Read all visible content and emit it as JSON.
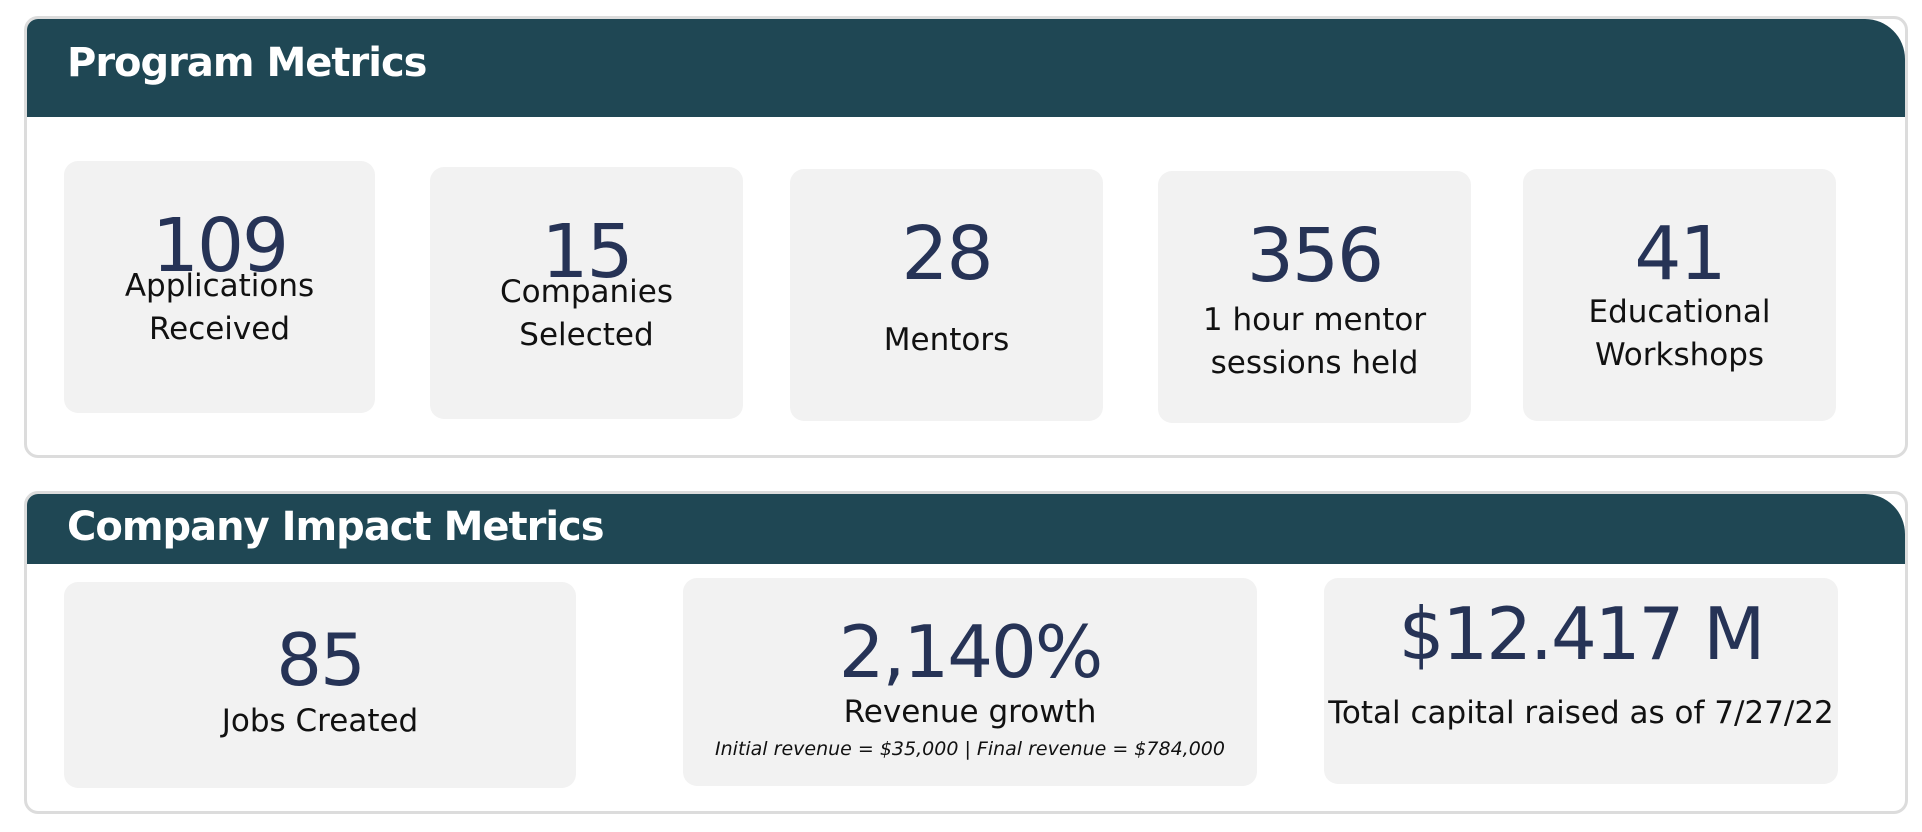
{
  "program_metrics": {
    "title": "Program Metrics",
    "cards": [
      {
        "value": "109",
        "label": "Applications\nReceived"
      },
      {
        "value": "15",
        "label": "Companies\nSelected"
      },
      {
        "value": "28",
        "label": "Mentors"
      },
      {
        "value": "356",
        "label": "1 hour mentor\nsessions held"
      },
      {
        "value": "41",
        "label": "Educational\nWorkshops"
      }
    ]
  },
  "company_impact_metrics": {
    "title": "Company Impact Metrics",
    "cards": [
      {
        "value": "85",
        "label": "Jobs Created"
      },
      {
        "value": "2,140%",
        "label": "Revenue growth",
        "note": "Initial revenue = $35,000 | Final revenue = $784,000"
      },
      {
        "value": "$12.417 M",
        "label": "Total capital raised as of 7/27/22"
      }
    ]
  },
  "colors": {
    "header_background": "#1f4754",
    "card_background": "#f2f2f2",
    "value_text": "#263356",
    "panel_border": "#dcdcdc"
  }
}
